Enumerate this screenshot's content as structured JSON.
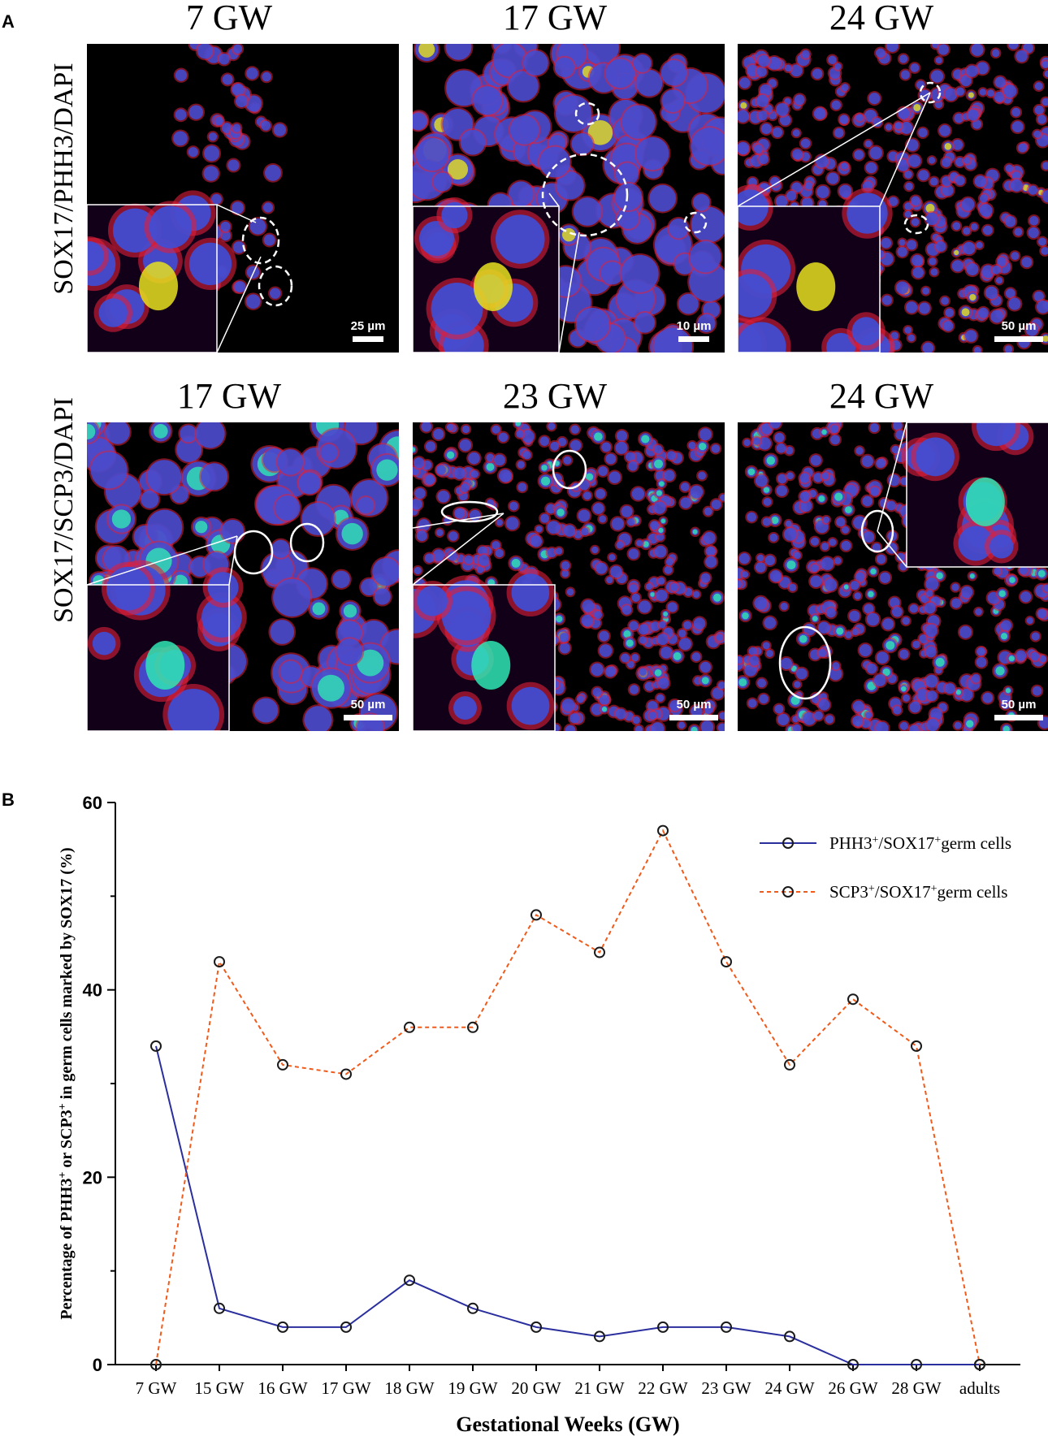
{
  "panel_a": {
    "letter": "A",
    "row_labels": [
      "SOX17/PHH3/DAPI",
      "SOX17/SCP3/DAPI"
    ],
    "images": [
      {
        "title": "7 GW",
        "scale_bar": "25 µm"
      },
      {
        "title": "17 GW",
        "scale_bar": "10 µm"
      },
      {
        "title": "24 GW",
        "scale_bar": "50 µm"
      },
      {
        "title": "17 GW",
        "scale_bar": "50 µm"
      },
      {
        "title": "23 GW",
        "scale_bar": "50 µm"
      },
      {
        "title": "24 GW",
        "scale_bar": "50 µm"
      }
    ],
    "colors": {
      "dapi": "#3d4fd8",
      "sox17": "#e0203a",
      "marker": "#2fe6b4",
      "phh3": "#e6e020",
      "background": "#000000"
    }
  },
  "panel_b": {
    "letter": "B"
  },
  "chart_data": {
    "type": "line",
    "xlabel": "Gestational Weeks (GW)",
    "ylabel": "Percentage of PHH3+ or SCP3+ in germ cells marked by SOX17 (%)",
    "categories": [
      "7 GW",
      "15 GW",
      "16 GW",
      "17 GW",
      "18 GW",
      "19 GW",
      "20 GW",
      "21 GW",
      "22 GW",
      "23 GW",
      "24 GW",
      "26 GW",
      "28 GW",
      "adults"
    ],
    "ylim": [
      0,
      60
    ],
    "yticks": [
      0,
      20,
      40,
      60
    ],
    "grid": false,
    "legend_position": "top-right",
    "series": [
      {
        "name": "PHH3+/SOX17+germ cells",
        "legend_parts": [
          "PHH3",
          "+",
          "/SOX17",
          "+",
          "germ cells"
        ],
        "color": "#2b2f9e",
        "style": "solid",
        "values": [
          34,
          6,
          4,
          4,
          9,
          6,
          4,
          3,
          4,
          4,
          3,
          0,
          0,
          0
        ]
      },
      {
        "name": "SCP3+/SOX17+germ cells",
        "legend_parts": [
          "SCP3",
          "+",
          "/SOX17",
          "+",
          "germ cells"
        ],
        "color": "#f05a1a",
        "style": "dashed",
        "values": [
          0,
          43,
          32,
          31,
          36,
          36,
          48,
          44,
          57,
          43,
          32,
          39,
          34,
          0
        ]
      }
    ]
  }
}
